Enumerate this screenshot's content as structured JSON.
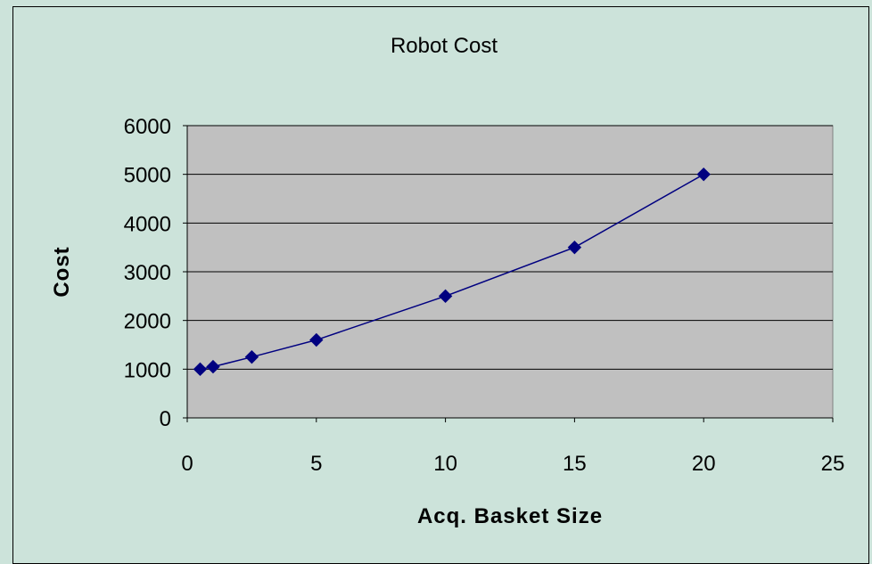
{
  "page": {
    "background": "#CCE3DA"
  },
  "chart_data": {
    "type": "scatter",
    "title": "Robot Cost",
    "xlabel": "Acq. Basket Size",
    "ylabel": "Cost",
    "x": [
      0.5,
      1,
      2.5,
      5,
      10,
      15,
      20
    ],
    "series": [
      {
        "values": [
          1000,
          1050,
          1250,
          1600,
          2500,
          3500,
          5000
        ],
        "color": "#000080",
        "marker": "diamond",
        "line": true
      }
    ],
    "xlim": [
      0,
      25
    ],
    "ylim": [
      0,
      6000
    ],
    "xticks": [
      0,
      5,
      10,
      15,
      20,
      25
    ],
    "yticks": [
      0,
      1000,
      2000,
      3000,
      4000,
      5000,
      6000
    ],
    "grid": "horizontal",
    "legend": "none",
    "plot_background": "#C0C0C0",
    "gridline_color": "#000000"
  }
}
